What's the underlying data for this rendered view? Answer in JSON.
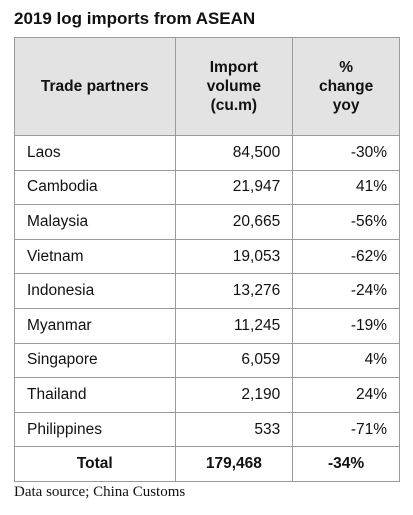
{
  "title": "2019 log imports from ASEAN",
  "table": {
    "header": [
      "Trade partners",
      "Import\nvolume\n(cu.m)",
      "%\nchange\nyoy"
    ],
    "rows": [
      [
        "Laos",
        "84,500",
        "-30%"
      ],
      [
        "Cambodia",
        "21,947",
        "41%"
      ],
      [
        "Malaysia",
        "20,665",
        "-56%"
      ],
      [
        "Vietnam",
        "19,053",
        "-62%"
      ],
      [
        "Indonesia",
        "13,276",
        "-24%"
      ],
      [
        "Myanmar",
        "11,245",
        "-19%"
      ],
      [
        "Singapore",
        "6,059",
        "4%"
      ],
      [
        "Thailand",
        "2,190",
        "24%"
      ],
      [
        "Philippines",
        "533",
        "-71%"
      ]
    ],
    "total": [
      "Total",
      "179,468",
      "-34%"
    ]
  },
  "source": "Data source; China Customs"
}
